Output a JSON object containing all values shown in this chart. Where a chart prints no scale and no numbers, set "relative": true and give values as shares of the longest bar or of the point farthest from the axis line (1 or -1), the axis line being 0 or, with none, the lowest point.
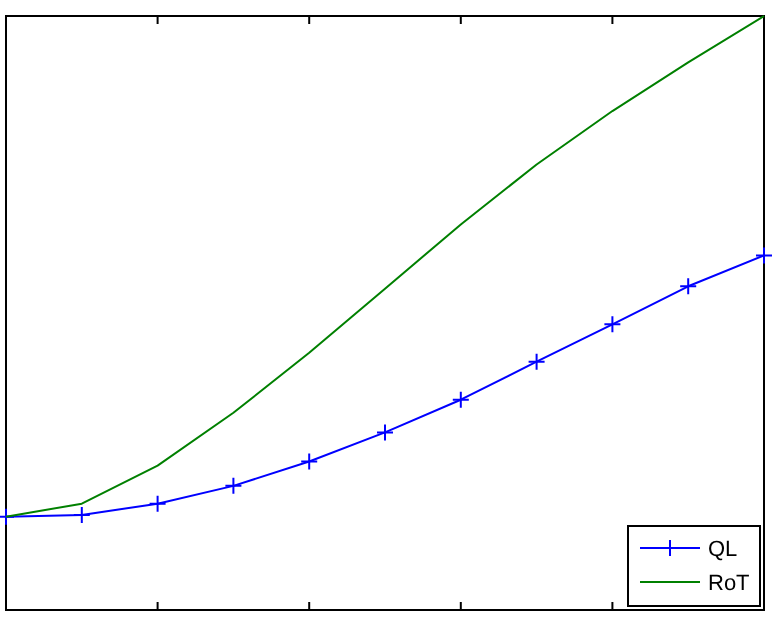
{
  "chart_data": {
    "type": "line",
    "relative": true,
    "categories": [
      null,
      null,
      null,
      null,
      null,
      null,
      null,
      null,
      null,
      null,
      null
    ],
    "legend": "bottom right",
    "grid": false,
    "series": [
      {
        "name": "QL",
        "color": "#0000ff",
        "marker": "cross",
        "values": [
          0.157,
          0.16,
          0.179,
          0.209,
          0.25,
          0.299,
          0.354,
          0.418,
          0.481,
          0.545,
          0.597
        ]
      },
      {
        "name": "RoT",
        "color": "#008000",
        "marker": "none",
        "values": [
          0.157,
          0.179,
          0.243,
          0.332,
          0.433,
          0.541,
          0.649,
          0.75,
          0.84,
          0.922,
          1
        ]
      }
    ]
  }
}
